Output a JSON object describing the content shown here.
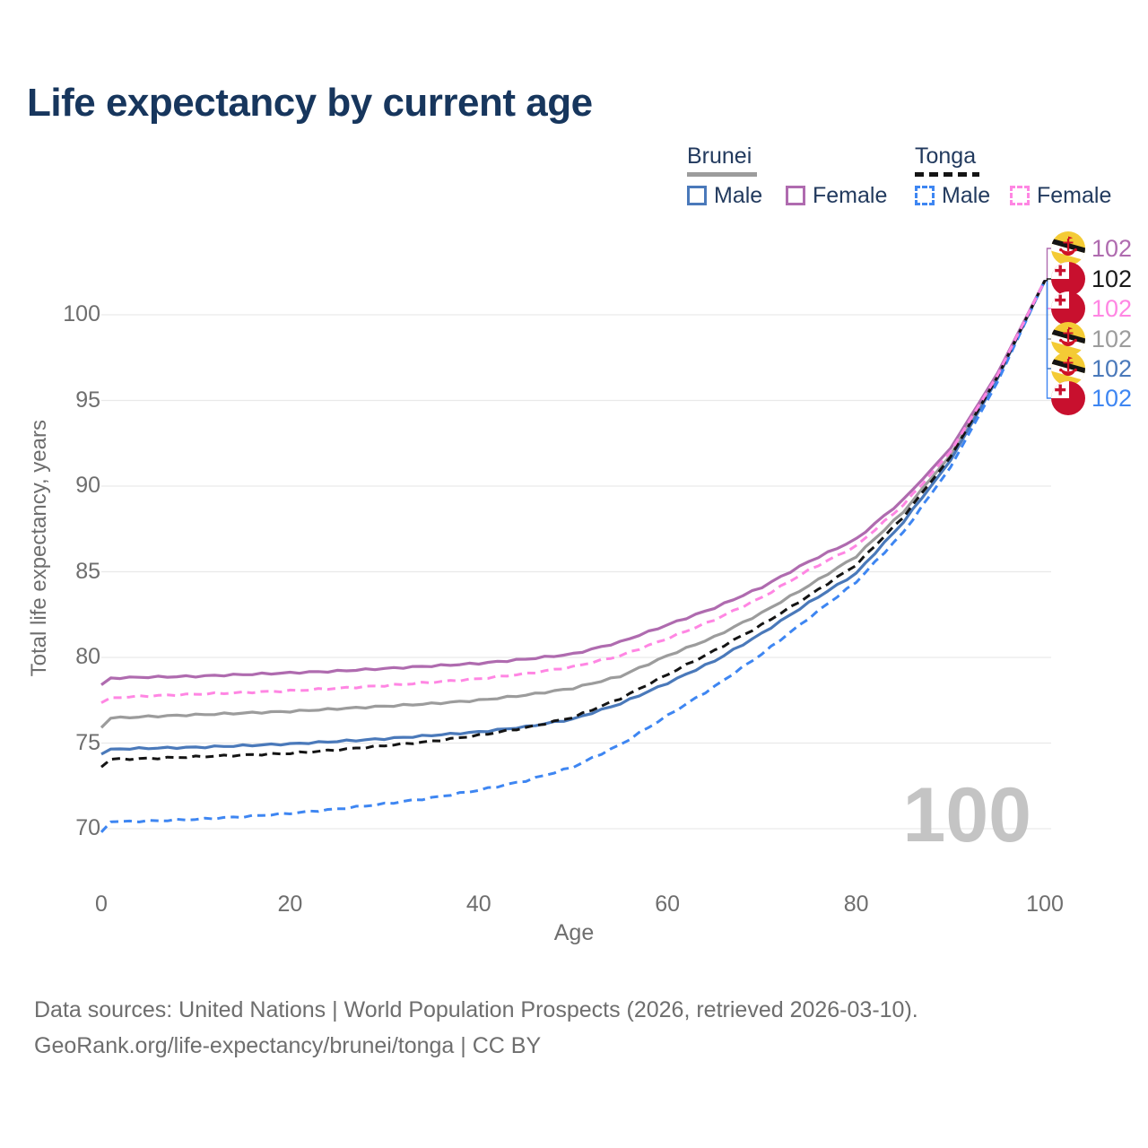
{
  "header": {
    "title": "Life expectancy by current age"
  },
  "legend": {
    "groups": [
      {
        "label": "Brunei",
        "line_style": "solid",
        "color": "#9C9C9C"
      },
      {
        "label": "Tonga",
        "line_style": "dashed",
        "color": "#141414"
      }
    ],
    "entries": [
      {
        "label": "Male",
        "country": "Brunei",
        "style": "solid",
        "color": "#4A79BA"
      },
      {
        "label": "Female",
        "country": "Brunei",
        "style": "solid",
        "color": "#AF6BAF"
      },
      {
        "label": "Male",
        "country": "Tonga",
        "style": "dashed",
        "color": "#3E86F2"
      },
      {
        "label": "Female",
        "country": "Tonga",
        "style": "dashed",
        "color": "#FF86E3"
      }
    ]
  },
  "chart_data": {
    "type": "line",
    "title": "Life expectancy by current age",
    "xlabel": "Age",
    "ylabel": "Total life expectancy, years",
    "x_ticks": [
      0,
      20,
      40,
      60,
      80,
      100
    ],
    "y_ticks": [
      100,
      95,
      90,
      85,
      80,
      75,
      70
    ],
    "xlim": [
      0,
      100
    ],
    "ylim": [
      68.5,
      103.5
    ],
    "grid": "horizontal",
    "ages": [
      0,
      1,
      5,
      10,
      15,
      20,
      25,
      30,
      35,
      40,
      45,
      50,
      55,
      60,
      65,
      70,
      75,
      80,
      85,
      90,
      95,
      100
    ],
    "series": [
      {
        "name": "Brunei",
        "country": "Brunei",
        "sex": "both",
        "style": "solid",
        "color": "#9C9C9C",
        "values": [
          75.9,
          76.45,
          76.55,
          76.65,
          76.75,
          76.85,
          77.0,
          77.15,
          77.3,
          77.5,
          77.8,
          78.2,
          78.9,
          80.1,
          81.2,
          82.6,
          84.2,
          85.9,
          88.5,
          91.8,
          96.4,
          102
        ]
      },
      {
        "name": "Brunei Male",
        "country": "Brunei",
        "sex": "male",
        "style": "solid",
        "color": "#4A79BA",
        "values": [
          74.35,
          74.65,
          74.7,
          74.75,
          74.85,
          74.95,
          75.1,
          75.25,
          75.45,
          75.65,
          75.95,
          76.4,
          77.3,
          78.5,
          79.8,
          81.4,
          83.2,
          84.9,
          87.9,
          91.5,
          96.3,
          102
        ]
      },
      {
        "name": "Brunei Female",
        "country": "Brunei",
        "sex": "female",
        "style": "solid",
        "color": "#AF6BAF",
        "values": [
          78.4,
          78.8,
          78.85,
          78.9,
          79.0,
          79.1,
          79.2,
          79.35,
          79.5,
          79.65,
          79.9,
          80.2,
          80.9,
          81.9,
          82.9,
          84.1,
          85.6,
          86.9,
          89.2,
          92.2,
          96.6,
          102
        ]
      },
      {
        "name": "Tonga Male",
        "country": "Tonga",
        "sex": "male",
        "style": "dashed",
        "color": "#3E86F2",
        "values": [
          69.8,
          70.4,
          70.45,
          70.55,
          70.7,
          70.9,
          71.15,
          71.45,
          71.8,
          72.25,
          72.8,
          73.6,
          74.9,
          76.6,
          78.3,
          80.2,
          82.3,
          84.4,
          87.3,
          91.1,
          96.1,
          102
        ]
      },
      {
        "name": "Tonga",
        "country": "Tonga",
        "sex": "both",
        "style": "dashed",
        "color": "#141414",
        "values": [
          73.6,
          74.05,
          74.1,
          74.2,
          74.3,
          74.4,
          74.6,
          74.85,
          75.1,
          75.45,
          75.9,
          76.5,
          77.6,
          79.0,
          80.4,
          81.9,
          83.6,
          85.4,
          88.2,
          91.7,
          96.4,
          102
        ]
      },
      {
        "name": "Tonga Female",
        "country": "Tonga",
        "sex": "female",
        "style": "dashed",
        "color": "#FF86E3",
        "values": [
          77.35,
          77.65,
          77.75,
          77.85,
          77.95,
          78.05,
          78.2,
          78.35,
          78.55,
          78.75,
          79.05,
          79.45,
          80.1,
          81.1,
          82.2,
          83.5,
          85.1,
          86.5,
          88.9,
          92.0,
          96.5,
          102
        ]
      }
    ]
  },
  "end_labels": [
    {
      "value": "102",
      "series": "Brunei Female",
      "flag": "brunei",
      "color": "#AF6BAF"
    },
    {
      "value": "102",
      "series": "Tonga",
      "flag": "tonga",
      "color": "#1A1A1A"
    },
    {
      "value": "102",
      "series": "Tonga Female",
      "flag": "tonga",
      "color": "#FF86E3"
    },
    {
      "value": "102",
      "series": "Brunei",
      "flag": "brunei",
      "color": "#9C9C9C"
    },
    {
      "value": "102",
      "series": "Brunei Male",
      "flag": "brunei",
      "color": "#4A79BA"
    },
    {
      "value": "102",
      "series": "Tonga Male",
      "flag": "tonga",
      "color": "#3E86F2"
    }
  ],
  "watermark": "100",
  "axes_titles": {
    "y": "Total life expectancy, years",
    "x": "Age"
  },
  "footer": {
    "line1": "Data sources: United Nations | World Population Prospects (2026, retrieved 2026-03-10).",
    "line2": "GeoRank.org/life-expectancy/brunei/tonga | CC BY"
  }
}
